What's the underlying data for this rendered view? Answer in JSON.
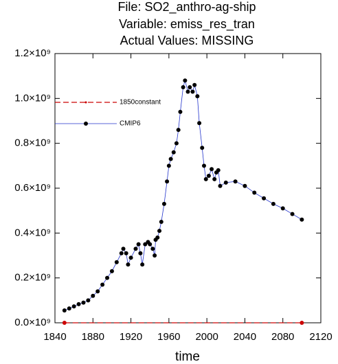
{
  "chart_data": {
    "type": "line",
    "title": [
      "File: SO2_anthro-ag-ship",
      "Variable: emiss_res_tran",
      "Actual Values: MISSING"
    ],
    "xlabel": "time",
    "xlim": [
      1840,
      2120
    ],
    "xticks": [
      1840,
      1880,
      1920,
      1960,
      2000,
      2040,
      2080,
      2120
    ],
    "ylim": [
      0,
      1200000000
    ],
    "yticks": [
      {
        "value": 0,
        "label": "0.0×10⁹"
      },
      {
        "value": 200000000,
        "label": "0.2×10⁹"
      },
      {
        "value": 400000000,
        "label": "0.4×10⁹"
      },
      {
        "value": 600000000,
        "label": "0.6×10⁹"
      },
      {
        "value": 800000000,
        "label": "0.8×10⁹"
      },
      {
        "value": 1000000000,
        "label": "1.0×10⁹"
      },
      {
        "value": 1200000000,
        "label": "1.2×10⁹"
      }
    ],
    "legend": "upper left",
    "series": [
      {
        "name": "1850constant",
        "color": "#cc0000",
        "marker_color": "#cc0000",
        "dash": true,
        "x": [
          1850,
          2100
        ],
        "values": [
          0,
          0
        ]
      },
      {
        "name": "CMIP6",
        "color": "#2233cc",
        "marker_color": "#000000",
        "dash": false,
        "x": [
          1850,
          1855,
          1860,
          1865,
          1870,
          1875,
          1880,
          1885,
          1890,
          1895,
          1900,
          1905,
          1910,
          1912,
          1915,
          1917,
          1920,
          1925,
          1928,
          1930,
          1932,
          1935,
          1938,
          1940,
          1943,
          1945,
          1946,
          1948,
          1950,
          1952,
          1955,
          1958,
          1960,
          1962,
          1965,
          1968,
          1970,
          1972,
          1975,
          1977,
          1980,
          1982,
          1985,
          1987,
          1990,
          1992,
          1995,
          1997,
          1999,
          2002,
          2005,
          2008,
          2010,
          2012,
          2014,
          2020,
          2030,
          2040,
          2050,
          2060,
          2070,
          2080,
          2090,
          2100
        ],
        "values": [
          55000000,
          64000000,
          73000000,
          83000000,
          90000000,
          100000000,
          120000000,
          140000000,
          170000000,
          200000000,
          230000000,
          270000000,
          310000000,
          330000000,
          310000000,
          260000000,
          290000000,
          330000000,
          350000000,
          310000000,
          260000000,
          350000000,
          360000000,
          350000000,
          330000000,
          300000000,
          370000000,
          380000000,
          410000000,
          450000000,
          530000000,
          630000000,
          700000000,
          730000000,
          760000000,
          800000000,
          860000000,
          940000000,
          1050000000,
          1080000000,
          1030000000,
          1050000000,
          1030000000,
          1060000000,
          1010000000,
          890000000,
          780000000,
          700000000,
          640000000,
          655000000,
          685000000,
          640000000,
          670000000,
          680000000,
          610000000,
          625000000,
          630000000,
          610000000,
          580000000,
          555000000,
          530000000,
          510000000,
          485000000,
          460000000
        ]
      }
    ]
  }
}
